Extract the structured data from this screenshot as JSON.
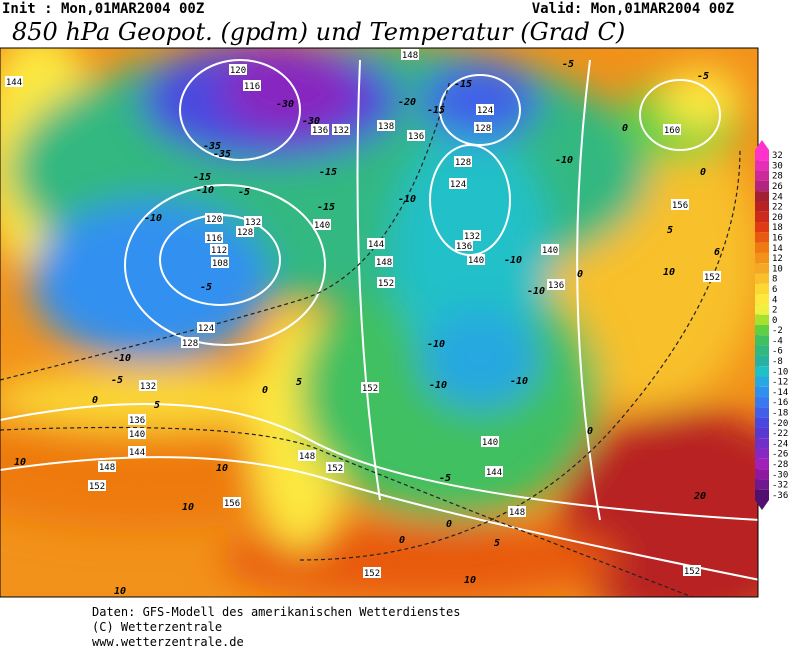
{
  "header": {
    "init": "Init : Mon,01MAR2004 00Z",
    "valid": "Valid: Mon,01MAR2004 00Z",
    "title": "850 hPa Geopot. (gpdm) und Temperatur (Grad C)"
  },
  "colorbar": {
    "labels": [
      32,
      30,
      28,
      26,
      24,
      22,
      20,
      18,
      16,
      14,
      12,
      10,
      8,
      6,
      4,
      2,
      0,
      -2,
      -4,
      -6,
      -8,
      -10,
      -12,
      -14,
      -16,
      -18,
      -20,
      -22,
      -24,
      -26,
      -28,
      -30,
      -32,
      -36
    ],
    "colors": [
      "#ff33cc",
      "#e62eb8",
      "#cc2999",
      "#b3247f",
      "#a31f33",
      "#b82222",
      "#cc2a1a",
      "#e03a14",
      "#e85a10",
      "#ee7a10",
      "#f2921a",
      "#f5a824",
      "#f8c02c",
      "#fbd834",
      "#fde840",
      "#f0f040",
      "#a8e030",
      "#60d040",
      "#40c060",
      "#30b880",
      "#28b0a0",
      "#20c0c8",
      "#28a8e0",
      "#3090f0",
      "#3878f0",
      "#4060e8",
      "#4848e0",
      "#5838d0",
      "#7030c8",
      "#8828c0",
      "#a020b8",
      "#9018a0",
      "#701890",
      "#501070"
    ]
  },
  "geopotential_labels": [
    "144",
    "120",
    "116",
    "136",
    "132",
    "138",
    "136",
    "124",
    "128",
    "160",
    "128",
    "124",
    "156",
    "140",
    "132",
    "128",
    "120",
    "116",
    "112",
    "108",
    "132",
    "136",
    "140",
    "144",
    "148",
    "152",
    "140",
    "136",
    "152",
    "124",
    "128",
    "132",
    "136",
    "140",
    "144",
    "148",
    "152",
    "152",
    "148",
    "152",
    "156",
    "140",
    "144",
    "148",
    "152",
    "152",
    "148"
  ],
  "temperature_labels": [
    "-30",
    "-30",
    "-20",
    "-15",
    "-15",
    "-5",
    "-5",
    "0",
    "0",
    "-10",
    "-35",
    "-35",
    "-15",
    "-10",
    "-5",
    "-10",
    "-15",
    "-15",
    "-10",
    "-5",
    "-10",
    "-10",
    "-10",
    "-10",
    "-10",
    "-10",
    "-5",
    "0",
    "5",
    "0",
    "5",
    "0",
    "5",
    "6",
    "10",
    "10",
    "10",
    "10",
    "-5",
    "0",
    "5",
    "0",
    "10",
    "10",
    "20",
    "0"
  ],
  "footer": [
    "Daten: GFS-Modell des amerikanischen Wetterdienstes",
    "(C) Wetterzentrale",
    "www.wetterzentrale.de"
  ]
}
